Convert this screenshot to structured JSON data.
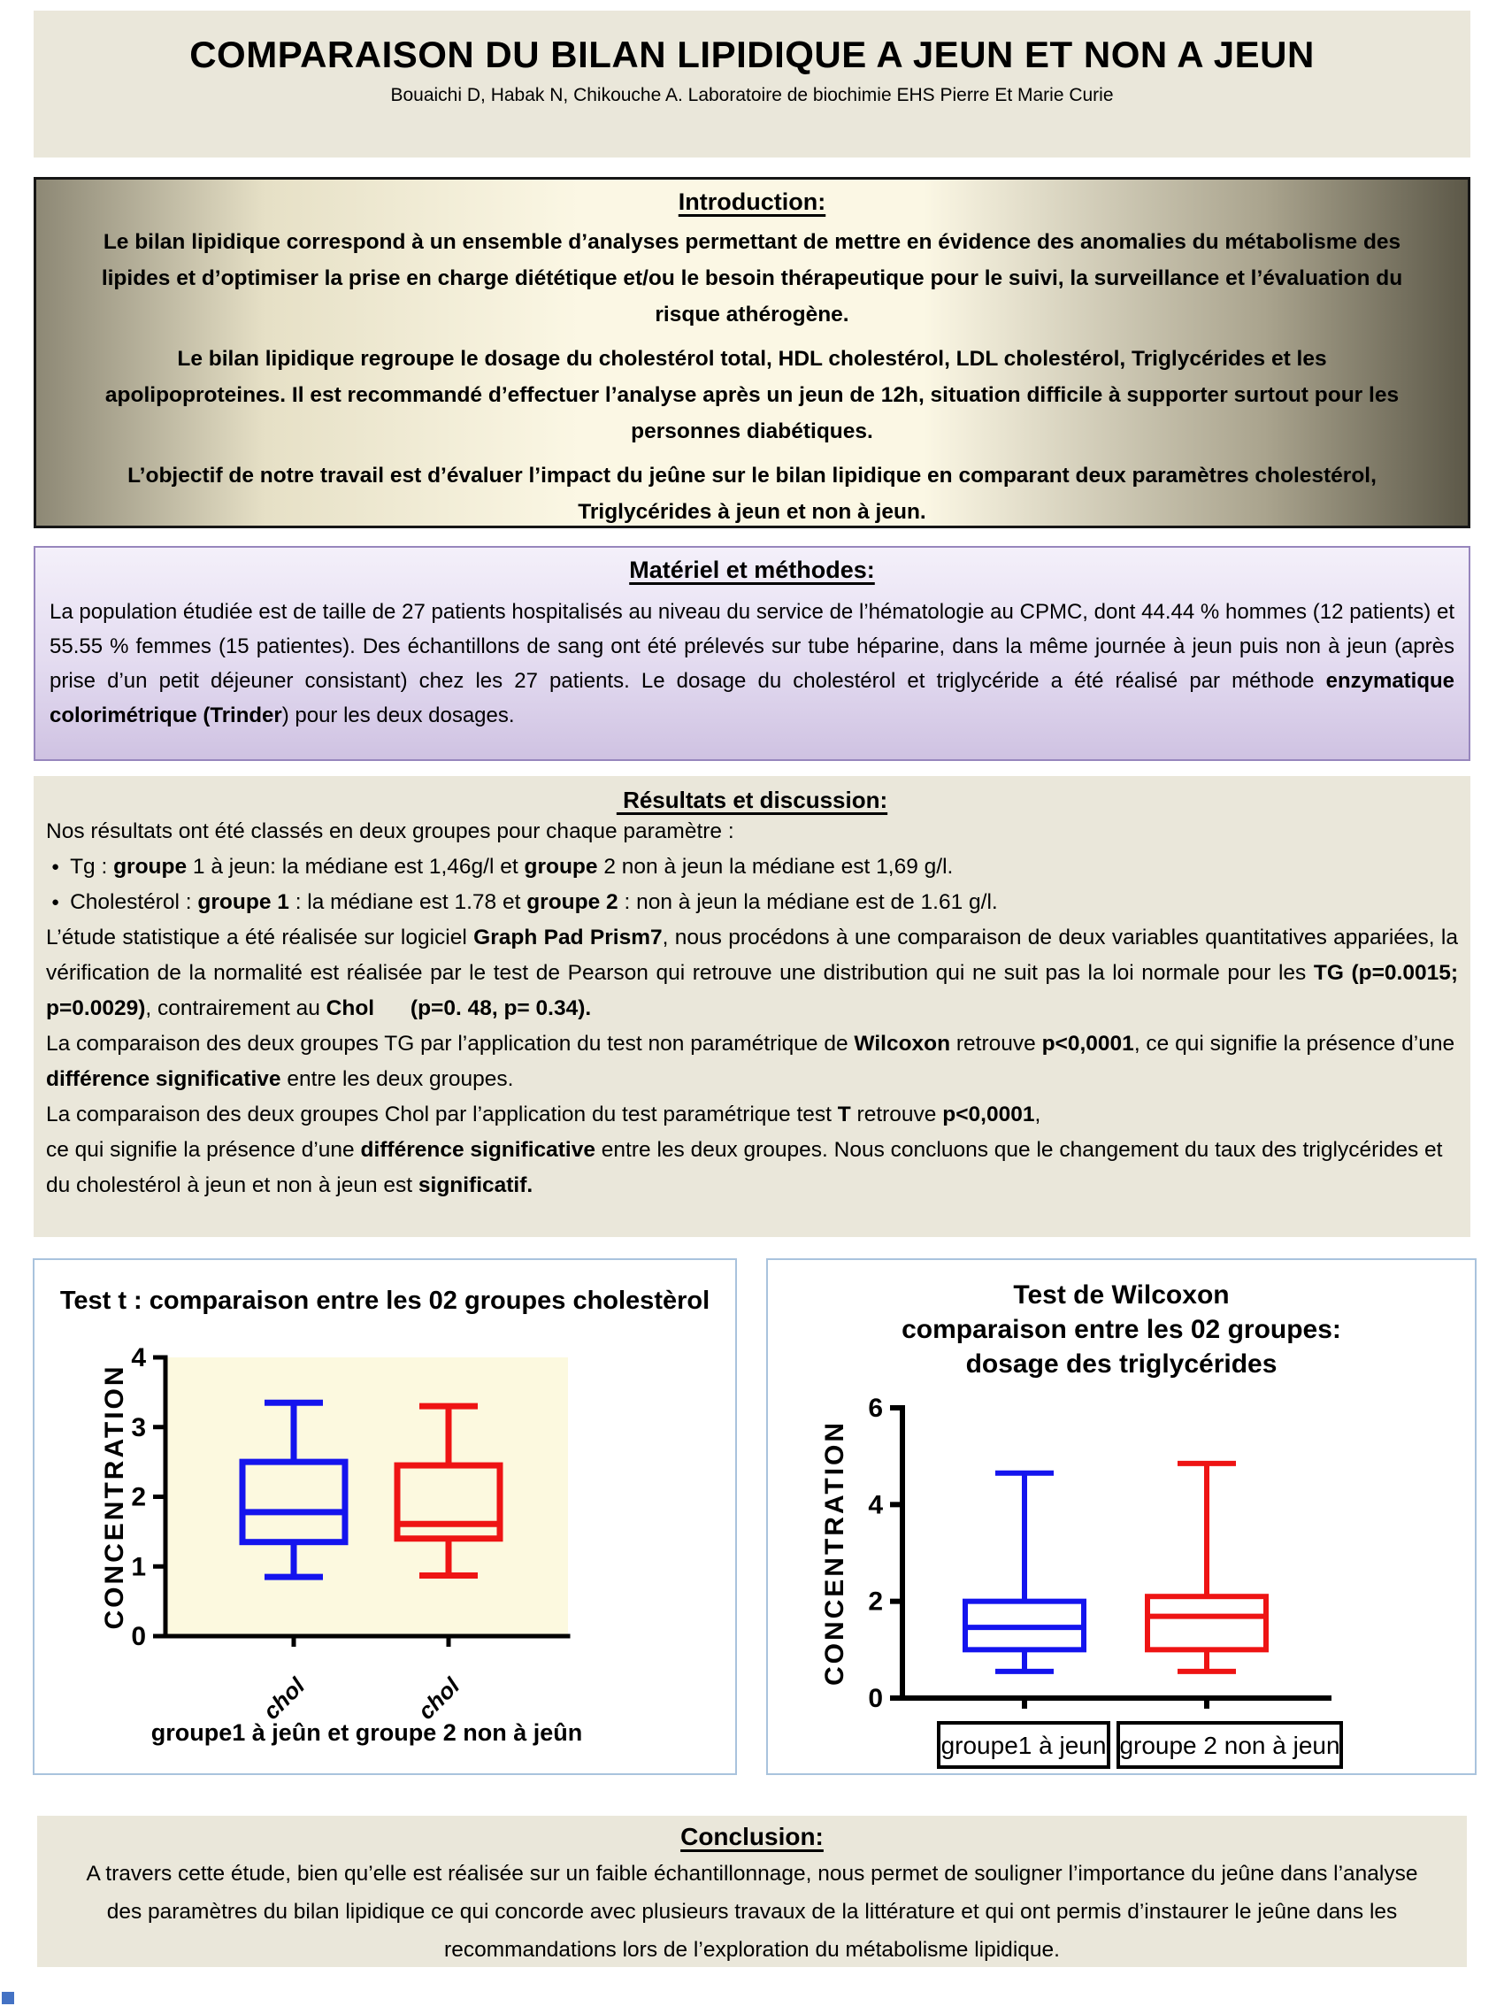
{
  "header": {
    "title": "COMPARAISON DU BILAN LIPIDIQUE A JEUN ET NON A JEUN",
    "authors": "Bouaichi D, Habak N, Chikouche A.  Laboratoire de biochimie EHS Pierre Et Marie Curie"
  },
  "introduction": {
    "heading": "Introduction:",
    "paragraphs": [
      "Le bilan lipidique correspond à un ensemble d’analyses permettant de mettre en évidence des anomalies du métabolisme des lipides et d’optimiser la prise en charge diététique et/ou le besoin thérapeutique pour le suivi, la surveillance et l’évaluation du risque athérogène.",
      "Le bilan lipidique regroupe le dosage du cholestérol total, HDL cholestérol, LDL cholestérol, Triglycérides et les apolipoproteines. Il est recommandé d’effectuer l’analyse après un jeun de 12h, situation difficile à supporter surtout pour les personnes diabétiques.",
      "L’objectif de notre travail est d’évaluer l’impact du jeûne sur le bilan lipidique en comparant deux  paramètres cholestérol, Triglycérides à jeun et non à jeun."
    ]
  },
  "methods": {
    "heading": "Matériel et méthodes:",
    "body": "La population étudiée est de taille de 27 patients hospitalisés au niveau du service de l’hématologie au CPMC, dont 44.44 % hommes (12 patients) et 55.55 % femmes (15 patientes).  Des échantillons de sang ont été prélevés sur tube héparine, dans la même journée à jeun puis non à jeun (après prise d’un petit déjeuner consistant) chez les 27 patients. Le dosage du  cholestérol et triglycéride a été réalisé par méthode **enzymatique colorimétrique (Trinder**) pour les deux dosages."
  },
  "results": {
    "heading": " Résultats et discussion:",
    "blocks": [
      {
        "style": "plain",
        "text": "Nos résultats ont été classés en deux groupes pour chaque paramètre :"
      },
      {
        "style": "bullet",
        "text": "Tg : **groupe** 1 à jeun: la médiane est 1,46g/l et **groupe** 2 non à jeun la médiane est 1,69 g/l."
      },
      {
        "style": "bullet",
        "text": "Cholestérol : **groupe 1** : la médiane est 1.78 et **groupe 2** : non à jeun  la médiane est de 1.61 g/l."
      },
      {
        "style": "justify",
        "text": "L’étude statistique a été réalisée sur logiciel **Graph Pad Prism7**, nous procédons à une comparaison de deux variables quantitatives appariées, la vérification de la normalité est réalisée par le test de Pearson qui retrouve une distribution qui ne suit pas la loi normale pour les **TG (p=0.0015; p=0.0029)**, contrairement au  **Chol      (p=0. 48, p= 0.34).**"
      },
      {
        "style": "plain",
        "text": "La comparaison des deux groupes TG par l’application du test non paramétrique de **Wilcoxon** retrouve **p<0,0001**, ce qui signifie la présence d’une **différence significative** entre les deux groupes."
      },
      {
        "style": "plain",
        "text": "La comparaison des deux groupes Chol par l’application du test paramétrique test **T** retrouve **p<0,0001**,"
      },
      {
        "style": "plain",
        "text": "ce qui signifie la présence d’une **différence significative** entre les deux groupes. Nous concluons que le changement du taux des triglycérides et du cholestérol à jeun et non à jeun est **significatif.**"
      }
    ]
  },
  "conclusion": {
    "heading": "Conclusion:",
    "body": "A travers cette étude, bien qu’elle est réalisée sur un faible échantillonnage, nous permet de souligner l’importance du jeûne dans l’analyse des paramètres du bilan lipidique ce qui concorde avec plusieurs travaux de la littérature et qui ont permis d’instaurer le jeûne dans les recommandations lors de l’exploration du métabolisme lipidique."
  },
  "accents": {
    "corner_square_color": "#4472c4",
    "blue_series_color": "#1414ee",
    "red_series_color": "#ee1414"
  },
  "chart_data": [
    {
      "type": "boxplot",
      "title": "Test t : comparaison entre les 02 groupes cholestèrol",
      "ylabel": "CONCENTRATION",
      "xlabel": "groupe1 à jeûn et groupe 2 non à jeûn",
      "ylim": [
        0,
        4
      ],
      "yticks": [
        0,
        1,
        2,
        3,
        4
      ],
      "plot_bg": "#fcf9df",
      "grid": false,
      "legend": "none",
      "categories": [
        "chol",
        "chol"
      ],
      "series": [
        {
          "name": "groupe 1 à jeûn (chol)",
          "color": "#1414ee",
          "box": {
            "min": 0.85,
            "q1": 1.35,
            "median": 1.78,
            "q3": 2.5,
            "max": 3.35
          }
        },
        {
          "name": "groupe 2 non à jeûn (chol)",
          "color": "#ee1414",
          "box": {
            "min": 0.87,
            "q1": 1.4,
            "median": 1.61,
            "q3": 2.45,
            "max": 3.3
          }
        }
      ]
    },
    {
      "type": "boxplot",
      "title": "Test de Wilcoxon\ncomparaison entre les 02 groupes:\ndosage des triglycérides",
      "ylabel": "CONCENTRATION",
      "xlabel": "",
      "ylim": [
        0,
        6
      ],
      "yticks": [
        0,
        2,
        4,
        6
      ],
      "plot_bg": "#ffffff",
      "grid": false,
      "legend": "none",
      "categories": [
        "groupe1 à jeun",
        "groupe 2 non à jeun"
      ],
      "series": [
        {
          "name": "groupe1 à jeun (TG)",
          "color": "#1414ee",
          "box": {
            "min": 0.55,
            "q1": 1.0,
            "median": 1.46,
            "q3": 2.0,
            "max": 4.65
          }
        },
        {
          "name": "groupe 2 non à jeun (TG)",
          "color": "#ee1414",
          "box": {
            "min": 0.55,
            "q1": 1.0,
            "median": 1.69,
            "q3": 2.1,
            "max": 4.85
          }
        }
      ]
    }
  ]
}
